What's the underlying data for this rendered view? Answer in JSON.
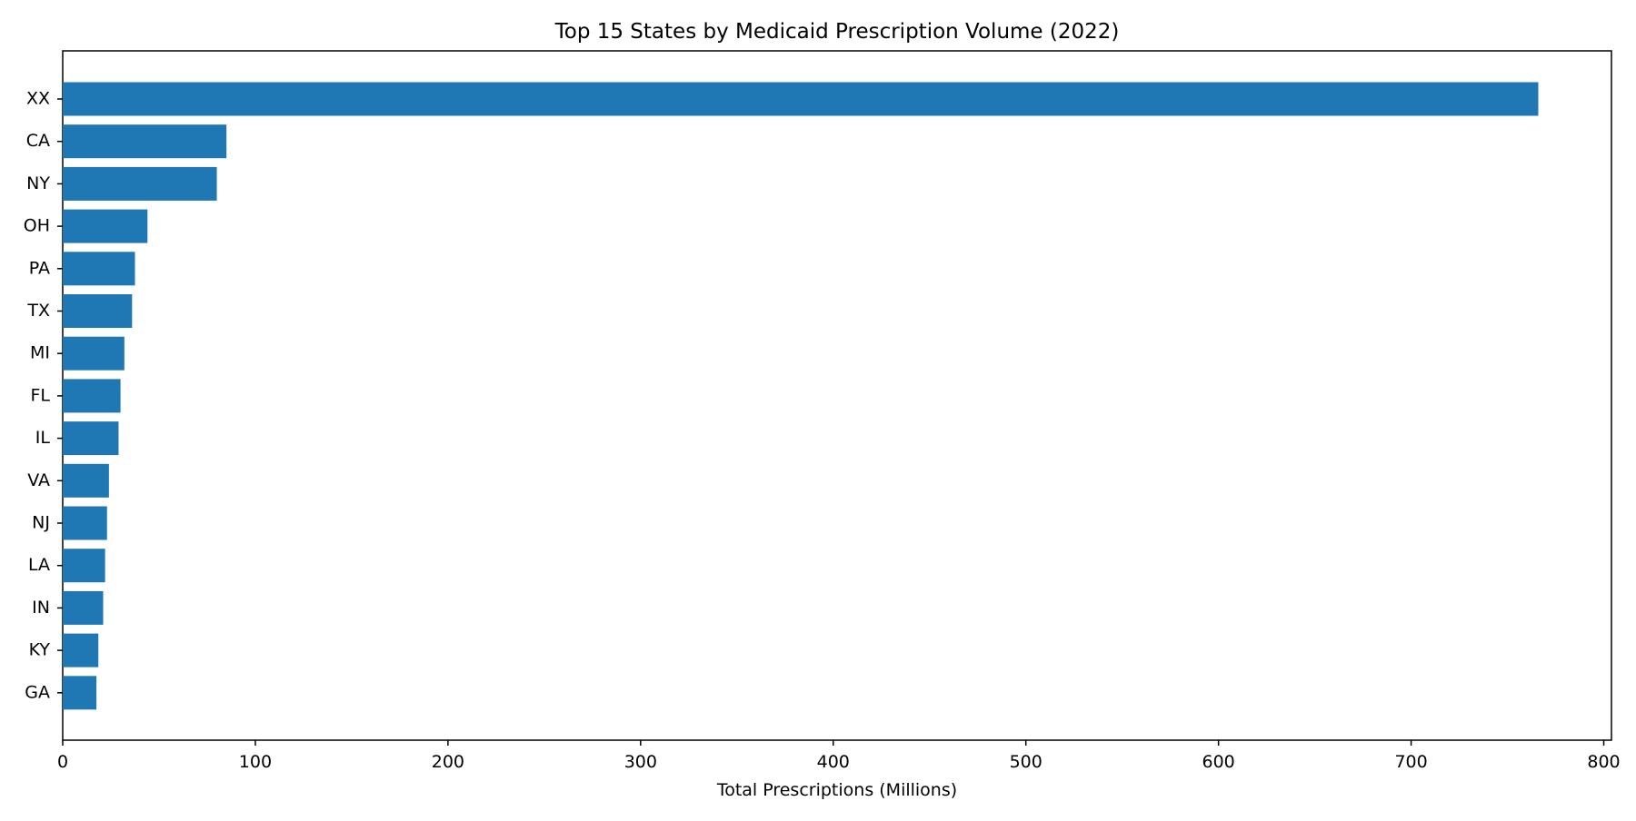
{
  "chart_data": {
    "type": "bar",
    "orientation": "horizontal",
    "title": "Top 15 States by Medicaid Prescription Volume (2022)",
    "xlabel": "Total Prescriptions (Millions)",
    "ylabel": "",
    "categories": [
      "XX",
      "CA",
      "NY",
      "OH",
      "PA",
      "TX",
      "MI",
      "FL",
      "IL",
      "VA",
      "NJ",
      "LA",
      "IN",
      "KY",
      "GA"
    ],
    "values": [
      766,
      85,
      80,
      44,
      37.5,
      36,
      32,
      30,
      29,
      24,
      23,
      22,
      21,
      18.5,
      17.5
    ],
    "xlim": [
      0,
      804
    ],
    "xticks": [
      0,
      100,
      200,
      300,
      400,
      500,
      600,
      700,
      800
    ],
    "grid": false,
    "legend": "none",
    "bar_color": "#1f77b4"
  }
}
